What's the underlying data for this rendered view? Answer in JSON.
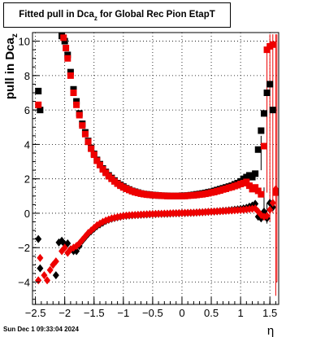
{
  "title": {
    "main": "Fitted pull in Dca",
    "sub": "z",
    "rest": "for Global Rec Pion EtapT"
  },
  "timestamp": "Sun Dec  1 09:33:04 2024",
  "chart_data": {
    "type": "scatter",
    "title": "Fitted pull in Dca_z for Global Rec Pion EtapT",
    "xlabel": "η",
    "ylabel": "pull in Dca",
    "ylabel_sub": "z",
    "xlim": [
      -2.55,
      1.65
    ],
    "ylim": [
      -5.3,
      10.5
    ],
    "xticks": [
      -2.5,
      -2,
      -1.5,
      -1,
      -0.5,
      0,
      0.5,
      1,
      1.5
    ],
    "xtick_labels": [
      "−2.5",
      "−2",
      "−1.5",
      "−1",
      "−0.5",
      "0",
      "0.5",
      "1",
      "1.5"
    ],
    "yticks": [
      -4,
      -2,
      0,
      2,
      4,
      6,
      8,
      10
    ],
    "ytick_labels": [
      "−4",
      "−2",
      "0",
      "2",
      "4",
      "6",
      "8",
      "10"
    ],
    "grid": true,
    "series": [
      {
        "color": "#000000",
        "marker": "square",
        "x": [
          -2.45,
          -2.42,
          -2.05,
          -2.0,
          -1.95,
          -1.9,
          -1.85,
          -1.8,
          -1.75,
          -1.7,
          -1.65,
          -1.6,
          -1.55,
          -1.5,
          -1.45,
          -1.4,
          -1.35,
          -1.3,
          -1.25,
          -1.2,
          -1.15,
          -1.1,
          -1.05,
          -1.0,
          -0.95,
          -0.9,
          -0.85,
          -0.8,
          -0.75,
          -0.7,
          -0.65,
          -0.6,
          -0.55,
          -0.5,
          -0.45,
          -0.4,
          -0.35,
          -0.3,
          -0.25,
          -0.2,
          -0.15,
          -0.1,
          -0.05,
          0.0,
          0.05,
          0.1,
          0.15,
          0.2,
          0.25,
          0.3,
          0.35,
          0.4,
          0.45,
          0.5,
          0.55,
          0.6,
          0.65,
          0.7,
          0.75,
          0.8,
          0.85,
          0.9,
          0.95,
          1.0,
          1.05,
          1.1,
          1.15,
          1.2,
          1.25,
          1.3,
          1.35,
          1.4,
          1.45,
          1.5,
          1.55
        ],
        "y": [
          7.1,
          6.0,
          10.3,
          10.0,
          9.2,
          8.2,
          7.2,
          6.5,
          5.8,
          5.2,
          4.7,
          4.2,
          3.8,
          3.45,
          3.1,
          2.85,
          2.6,
          2.4,
          2.2,
          2.05,
          1.9,
          1.75,
          1.65,
          1.55,
          1.45,
          1.38,
          1.3,
          1.25,
          1.2,
          1.15,
          1.12,
          1.1,
          1.08,
          1.06,
          1.05,
          1.03,
          1.02,
          1.02,
          1.01,
          1.0,
          1.0,
          1.0,
          1.0,
          1.02,
          1.02,
          1.03,
          1.05,
          1.07,
          1.1,
          1.12,
          1.15,
          1.18,
          1.22,
          1.25,
          1.3,
          1.35,
          1.4,
          1.45,
          1.5,
          1.55,
          1.6,
          1.68,
          1.75,
          1.85,
          2.0,
          2.1,
          2.2,
          2.1,
          2.3,
          3.7,
          4.8,
          5.8,
          7.0,
          7.5,
          6.0
        ]
      },
      {
        "color": "#ee0000",
        "marker": "square",
        "x": [
          -2.45,
          -2.02,
          -1.98,
          -1.95,
          -1.9,
          -1.85,
          -1.8,
          -1.75,
          -1.7,
          -1.65,
          -1.6,
          -1.55,
          -1.5,
          -1.45,
          -1.4,
          -1.35,
          -1.3,
          -1.25,
          -1.2,
          -1.15,
          -1.1,
          -1.05,
          -1.0,
          -0.95,
          -0.9,
          -0.85,
          -0.8,
          -0.75,
          -0.7,
          -0.65,
          -0.6,
          -0.55,
          -0.5,
          -0.45,
          -0.4,
          -0.35,
          -0.3,
          -0.25,
          -0.2,
          -0.15,
          -0.1,
          -0.05,
          0.0,
          0.05,
          0.1,
          0.15,
          0.2,
          0.25,
          0.3,
          0.35,
          0.4,
          0.45,
          0.5,
          0.55,
          0.6,
          0.65,
          0.7,
          0.75,
          0.8,
          0.85,
          0.9,
          0.95,
          1.0,
          1.05,
          1.1,
          1.15,
          1.2,
          1.25,
          1.3,
          1.35,
          1.4,
          1.45,
          1.5,
          1.55,
          1.6
        ],
        "y": [
          6.3,
          10.2,
          9.6,
          9.0,
          8.0,
          7.0,
          6.3,
          5.7,
          5.1,
          4.6,
          4.15,
          3.75,
          3.4,
          3.05,
          2.8,
          2.55,
          2.35,
          2.15,
          2.0,
          1.85,
          1.72,
          1.6,
          1.5,
          1.42,
          1.35,
          1.28,
          1.22,
          1.18,
          1.14,
          1.11,
          1.08,
          1.07,
          1.05,
          1.04,
          1.03,
          1.02,
          1.01,
          1.0,
          1.0,
          1.0,
          1.0,
          1.0,
          1.0,
          1.0,
          1.02,
          1.03,
          1.04,
          1.06,
          1.08,
          1.1,
          1.13,
          1.16,
          1.2,
          1.23,
          1.28,
          1.32,
          1.38,
          1.42,
          1.48,
          1.52,
          1.58,
          1.63,
          1.7,
          1.75,
          1.82,
          1.6,
          1.4,
          1.5,
          1.3,
          1.1,
          3.9,
          9.5,
          9.7,
          9.8,
          1.2
        ]
      },
      {
        "color": "#000000",
        "marker": "diamond",
        "x": [
          -2.45,
          -2.42,
          -2.15,
          -2.1,
          -2.05,
          -2.0,
          -1.95,
          -1.9,
          -1.85,
          -1.8,
          -1.75,
          -1.7,
          -1.65,
          -1.6,
          -1.55,
          -1.5,
          -1.45,
          -1.4,
          -1.35,
          -1.3,
          -1.25,
          -1.2,
          -1.15,
          -1.1,
          -1.05,
          -1.0,
          -0.95,
          -0.9,
          -0.85,
          -0.8,
          -0.75,
          -0.7,
          -0.65,
          -0.6,
          -0.55,
          -0.5,
          -0.45,
          -0.4,
          -0.35,
          -0.3,
          -0.25,
          -0.2,
          -0.15,
          -0.1,
          -0.05,
          0.0,
          0.05,
          0.1,
          0.15,
          0.2,
          0.25,
          0.3,
          0.35,
          0.4,
          0.45,
          0.5,
          0.55,
          0.6,
          0.65,
          0.7,
          0.75,
          0.8,
          0.85,
          0.9,
          0.95,
          1.0,
          1.05,
          1.1,
          1.15,
          1.2,
          1.25,
          1.3,
          1.35,
          1.4,
          1.45,
          1.5,
          1.55
        ],
        "y": [
          -1.5,
          -3.2,
          -3.6,
          -1.7,
          -1.6,
          -1.8,
          -1.75,
          -2.1,
          -2.2,
          -2.2,
          -1.9,
          -1.6,
          -1.4,
          -1.2,
          -1.05,
          -0.9,
          -0.75,
          -0.65,
          -0.55,
          -0.45,
          -0.38,
          -0.32,
          -0.28,
          -0.24,
          -0.2,
          -0.17,
          -0.15,
          -0.13,
          -0.12,
          -0.11,
          -0.1,
          -0.09,
          -0.08,
          -0.07,
          -0.06,
          -0.05,
          -0.05,
          -0.04,
          -0.04,
          -0.03,
          -0.03,
          -0.02,
          -0.01,
          0.0,
          0.0,
          0.01,
          0.01,
          0.02,
          0.02,
          0.03,
          0.04,
          0.05,
          0.06,
          0.07,
          0.08,
          0.09,
          0.1,
          0.11,
          0.12,
          0.14,
          0.15,
          0.17,
          0.19,
          0.21,
          0.23,
          0.25,
          0.28,
          0.32,
          0.38,
          0.45,
          0.55,
          -0.2,
          -0.3,
          0.1,
          -0.3,
          0.6,
          0.35
        ]
      },
      {
        "color": "#ee0000",
        "marker": "diamond",
        "x": [
          -2.45,
          -2.42,
          -2.35,
          -2.3,
          -2.25,
          -2.2,
          -2.15,
          -2.05,
          -2.0,
          -1.95,
          -1.9,
          -1.85,
          -1.8,
          -1.75,
          -1.7,
          -1.65,
          -1.6,
          -1.55,
          -1.5,
          -1.45,
          -1.4,
          -1.35,
          -1.3,
          -1.25,
          -1.2,
          -1.15,
          -1.1,
          -1.05,
          -1.0,
          -0.95,
          -0.9,
          -0.85,
          -0.8,
          -0.75,
          -0.7,
          -0.65,
          -0.6,
          -0.55,
          -0.5,
          -0.45,
          -0.4,
          -0.35,
          -0.3,
          -0.25,
          -0.2,
          -0.15,
          -0.1,
          -0.05,
          0.0,
          0.05,
          0.1,
          0.15,
          0.2,
          0.25,
          0.3,
          0.35,
          0.4,
          0.45,
          0.5,
          0.55,
          0.6,
          0.65,
          0.7,
          0.75,
          0.8,
          0.85,
          0.9,
          0.95,
          1.0,
          1.05,
          1.1,
          1.15,
          1.2,
          1.25,
          1.3,
          1.35,
          1.4,
          1.45,
          1.5,
          1.55,
          1.6
        ],
        "y": [
          -3.9,
          -2.6,
          -3.6,
          -3.9,
          -3.3,
          -3.0,
          -2.8,
          -2.2,
          -2.0,
          -2.3,
          -2.1,
          -2.0,
          -1.9,
          -1.75,
          -1.55,
          -1.35,
          -1.15,
          -1.0,
          -0.85,
          -0.7,
          -0.6,
          -0.5,
          -0.42,
          -0.36,
          -0.3,
          -0.26,
          -0.22,
          -0.19,
          -0.16,
          -0.14,
          -0.12,
          -0.11,
          -0.1,
          -0.09,
          -0.08,
          -0.07,
          -0.06,
          -0.05,
          -0.05,
          -0.04,
          -0.03,
          -0.03,
          -0.02,
          -0.02,
          -0.01,
          0.0,
          0.0,
          0.01,
          0.01,
          0.02,
          0.02,
          0.03,
          0.03,
          0.04,
          0.05,
          0.06,
          0.07,
          0.08,
          0.09,
          0.1,
          0.11,
          0.12,
          0.13,
          0.14,
          0.15,
          0.16,
          0.17,
          0.18,
          0.19,
          0.2,
          0.22,
          0.24,
          0.26,
          0.28,
          0.1,
          -0.1,
          -0.2,
          -0.15,
          0.2,
          0.6,
          1.4
        ]
      }
    ]
  }
}
